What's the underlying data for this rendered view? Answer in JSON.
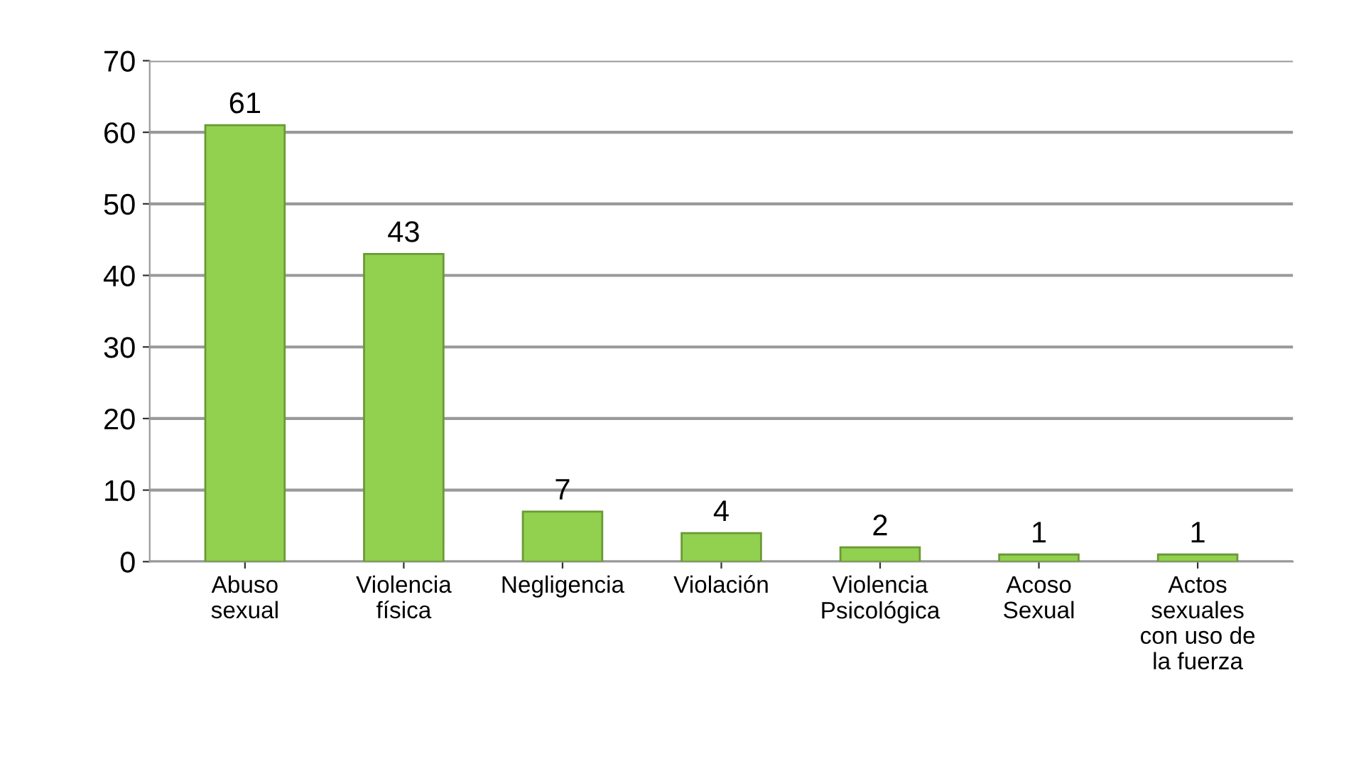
{
  "chart_data": {
    "type": "bar",
    "categories": [
      "Abuso\nsexual",
      "Violencia\nfísica",
      "Negligencia",
      "Violación",
      "Violencia\nPsicológica",
      "Acoso\nSexual",
      "Actos\nsexuales\ncon uso de\nla fuerza"
    ],
    "values": [
      61,
      43,
      7,
      4,
      2,
      1,
      1
    ],
    "color": "#92d050",
    "ylim": [
      0,
      70
    ],
    "yticks": [
      0,
      10,
      20,
      30,
      40,
      50,
      60,
      70
    ],
    "grid": "y",
    "data_labels": true
  }
}
